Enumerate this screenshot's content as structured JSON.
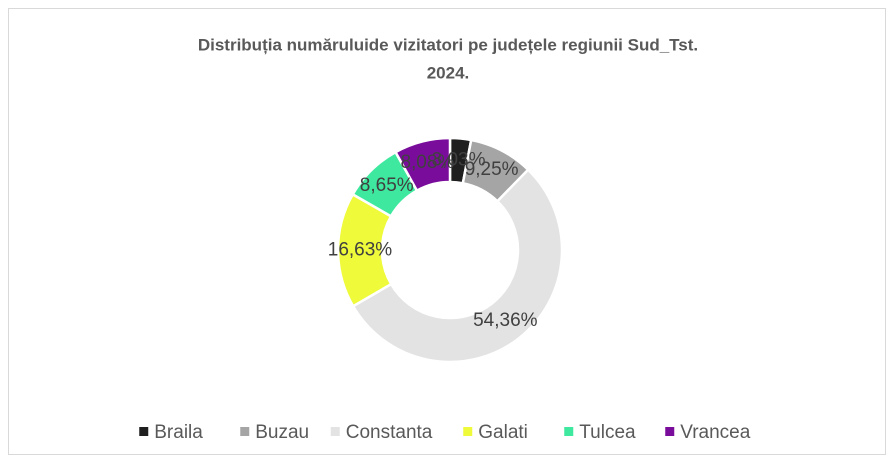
{
  "chart_data": {
    "type": "donut",
    "title": [
      "Distribuția numărului​de vizitatori pe județele regiunii Sud_Tst.",
      "2024."
    ],
    "categories": [
      "Braila",
      "Buzau",
      "Constanta",
      "Galati",
      "Tulcea",
      "Vrancea"
    ],
    "values": [
      3.03,
      9.25,
      54.36,
      16.63,
      8.65,
      8.08
    ],
    "value_labels": [
      "3,03%",
      "9,25%",
      "54,36%",
      "16,63%",
      "8,65%",
      "8,08%"
    ],
    "colors": [
      "#1f1f1f",
      "#a5a5a5",
      "#e3e3e3",
      "#eefa3a",
      "#3ee89e",
      "#7a0c9c"
    ],
    "legend": "bottom"
  }
}
